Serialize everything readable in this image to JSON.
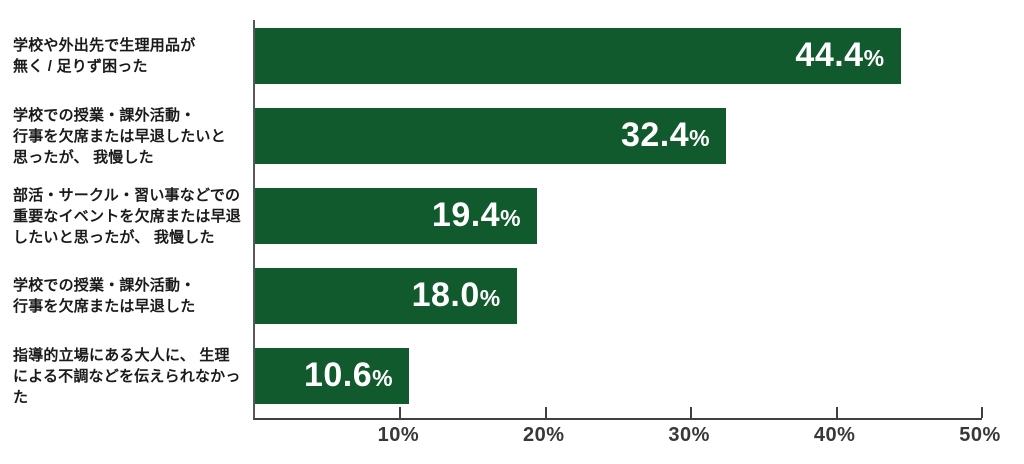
{
  "chart_data": {
    "type": "bar",
    "orientation": "horizontal",
    "title": "",
    "xlabel": "",
    "ylabel": "",
    "categories": [
      "学校や外出先で生理用品が無く / 足りず困った",
      "学校での授業・課外活動・行事を欠席または早退したいと思ったが、 我慢した",
      "部活・サークル・習い事などでの重要なイベントを欠席または早退したいと思ったが、 我慢した",
      "学校での授業・課外活動・行事を欠席または早退した",
      "指導的立場にある大人に、 生理による不調などを伝えられなかった"
    ],
    "category_lines": [
      [
        "学校や外出先で生理用品が",
        "無く / 足りず困った"
      ],
      [
        "学校での授業・課外活動・",
        "行事を欠席または早退したいと",
        "思ったが、 我慢した"
      ],
      [
        "部活・サークル・習い事などでの",
        "重要なイベントを欠席または早退",
        "したいと思ったが、 我慢した"
      ],
      [
        "学校での授業・課外活動・",
        "行事を欠席または早退した"
      ],
      [
        "指導的立場にある大人に、 生理",
        "による不調などを伝えられなかった"
      ]
    ],
    "values": [
      44.4,
      32.4,
      19.4,
      18.0,
      10.6
    ],
    "value_labels": [
      "44.4",
      "32.4",
      "19.4",
      "18.0",
      "10.6"
    ],
    "unit": "%",
    "xlim": [
      0,
      50
    ],
    "x_ticks": [
      {
        "value": 10,
        "label": "10%"
      },
      {
        "value": 20,
        "label": "20%"
      },
      {
        "value": 30,
        "label": "30%"
      },
      {
        "value": 40,
        "label": "40%"
      },
      {
        "value": 50,
        "label": "50%"
      }
    ],
    "grid": false,
    "legend": false,
    "colors": {
      "bar": "#115A2D",
      "value_text": "#FFFFFF",
      "axis_line": "#404040",
      "left_axis_line": "#595959",
      "tick_label": "#383838",
      "category_label": "#1A1A1A",
      "background": "#FFFFFF"
    }
  }
}
